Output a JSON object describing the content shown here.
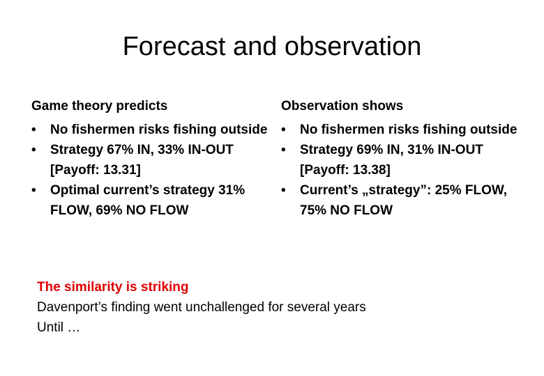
{
  "slide": {
    "title": "Forecast and observation",
    "left": {
      "heading": "Game theory predicts",
      "bullets": [
        "No fishermen risks fishing outside",
        "Strategy 67% IN, 33% IN-OUT [Payoff: 13.31]",
        "Optimal current’s strategy 31% FLOW,  69% NO FLOW"
      ]
    },
    "right": {
      "heading": "Observation shows",
      "bullets": [
        "No fishermen risks fishing outside",
        "Strategy 69% IN, 31% IN-OUT [Payoff: 13.38]",
        "Current’s „strategy”: 25% FLOW, 75% NO FLOW"
      ]
    },
    "bottom": {
      "highlight": "The similarity is striking",
      "lines": [
        "Davenport’s finding went unchallenged for several years",
        "Until …"
      ]
    },
    "colors": {
      "highlight": "#e00000",
      "text": "#000000",
      "background": "#ffffff"
    },
    "bullet_glyph": "•"
  }
}
